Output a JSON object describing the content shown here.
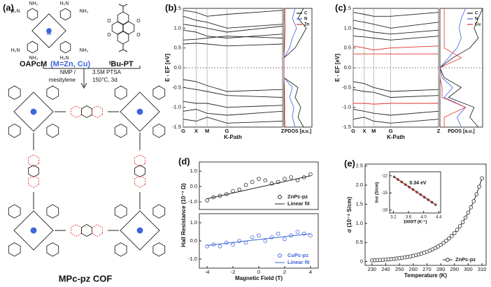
{
  "scheme": {
    "panel": "(a)",
    "monomer_1": "OAPcM",
    "monomer_1_metals": "(M=Zn, Cu)",
    "metal_atom": "M",
    "monomer_2": "ᵗBu-PT",
    "amines": [
      "H₂N",
      "NH₂",
      "H₂N",
      "NH₂",
      "H₂N",
      "NH₂",
      "H₂N",
      "NH₂"
    ],
    "oxygens": [
      "O",
      "O",
      "O",
      "O"
    ],
    "conditions_left": [
      "NMP /",
      "mesitylene"
    ],
    "conditions_right": [
      "3.5M PTSA",
      "150°C, 3d"
    ],
    "product": "MPc-pz COF"
  },
  "chart_data": [
    {
      "type": "band",
      "panel": "(b)",
      "ylabel": "E - EF [eV]",
      "xlabel": "K-Path",
      "xlim": [
        0,
        1
      ],
      "ylim": [
        -1.5,
        1.5
      ],
      "xticks": [
        {
          "value": 0,
          "label": "G"
        },
        {
          "value": 0.13,
          "label": "X"
        },
        {
          "value": 0.24,
          "label": "M"
        },
        {
          "value": 0.44,
          "label": "G"
        },
        {
          "value": 1,
          "label": "Z"
        }
      ],
      "yticks": [
        -1.5,
        {
          "value": -1,
          "label": "-1.0"
        },
        -0.5,
        {
          "value": 0,
          "label": "0.0"
        },
        0.5,
        {
          "value": 1,
          "label": "1.0"
        },
        1.5
      ],
      "fermi_level": 0,
      "x": [
        0,
        0.13,
        0.24,
        0.44,
        1
      ],
      "band_sets": [
        {
          "color": "#222222",
          "bands": [
            [
              1.45,
              1.4,
              1.3,
              1.35,
              1.45
            ],
            [
              1.3,
              1.2,
              1.15,
              1.0,
              1.1
            ],
            [
              1.1,
              1.05,
              1.0,
              0.9,
              1.05
            ],
            [
              0.95,
              0.9,
              0.8,
              0.75,
              0.85
            ],
            [
              0.7,
              0.72,
              0.75,
              0.8,
              0.75
            ],
            [
              0.6,
              0.62,
              0.6,
              0.55,
              0.6
            ],
            [
              -0.3,
              -0.35,
              -0.45,
              -0.6,
              -0.55
            ],
            [
              -0.5,
              -0.55,
              -0.6,
              -0.7,
              -0.75
            ],
            [
              -0.85,
              -0.9,
              -0.9,
              -1.0,
              -0.95
            ],
            [
              -1.1,
              -1.05,
              -1.15,
              -1.2,
              -1.1
            ],
            [
              -1.3,
              -1.35,
              -1.25,
              -1.4,
              -1.35
            ]
          ]
        }
      ],
      "pdos": {
        "title": "PDOS [a.u.]",
        "xlim": [
          0,
          1
        ],
        "energies": [
          -1.5,
          -1.25,
          -1,
          -0.75,
          -0.5,
          -0.25,
          0,
          0.25,
          0.5,
          0.75,
          1,
          1.25,
          1.5
        ],
        "legend": "upper right",
        "series": [
          {
            "name": "C",
            "color": "#111111",
            "values": [
              0.7,
              0.5,
              0.6,
              0.4,
              0.5,
              0,
              0,
              0,
              0.4,
              0.6,
              0.8,
              0.5,
              0.7
            ]
          },
          {
            "name": "N",
            "color": "#3d63dd",
            "values": [
              0.4,
              0.3,
              0.35,
              0.2,
              0.3,
              0,
              0,
              0,
              0.2,
              0.3,
              0.45,
              0.3,
              0.4
            ]
          },
          {
            "name": "Zn",
            "color": "#e0312b",
            "values": [
              0.05,
              0.02,
              0.03,
              0.02,
              0.02,
              0,
              0,
              0,
              0.02,
              0.03,
              0.05,
              0.03,
              0.04
            ]
          }
        ]
      }
    },
    {
      "type": "band",
      "panel": "(c)",
      "ylabel": "E - EF [eV]",
      "xlabel": "K-Path",
      "xlim": [
        0,
        1
      ],
      "ylim": [
        -1.5,
        1.5
      ],
      "xticks": [
        {
          "value": 0,
          "label": "G"
        },
        {
          "value": 0.13,
          "label": "X"
        },
        {
          "value": 0.24,
          "label": "M"
        },
        {
          "value": 0.44,
          "label": "G"
        },
        {
          "value": 1,
          "label": "Z"
        }
      ],
      "yticks": [
        -1.5,
        {
          "value": -1,
          "label": "-1.0"
        },
        -0.5,
        {
          "value": 0,
          "label": "0.0"
        },
        0.5,
        {
          "value": 1,
          "label": "1.0"
        },
        1.5
      ],
      "fermi_level": 0,
      "x": [
        0,
        0.13,
        0.24,
        0.44,
        1
      ],
      "band_sets": [
        {
          "color": "#222222",
          "bands": [
            [
              1.4,
              1.35,
              1.3,
              1.3,
              1.4
            ],
            [
              1.2,
              1.15,
              1.1,
              1.0,
              1.15
            ],
            [
              1.0,
              0.95,
              0.9,
              0.85,
              0.95
            ],
            [
              0.8,
              0.78,
              0.75,
              0.7,
              0.8
            ],
            [
              -0.35,
              -0.4,
              -0.5,
              -0.6,
              -0.55
            ],
            [
              -0.55,
              -0.6,
              -0.62,
              -0.75,
              -0.7
            ],
            [
              -1.05,
              -1.1,
              -1.15,
              -1.2,
              -1.1
            ],
            [
              -1.3,
              -1.25,
              -1.35,
              -1.4,
              -1.3
            ]
          ]
        },
        {
          "color": "#e0312b",
          "bands": [
            [
              0.55,
              0.5,
              0.45,
              0.5,
              0.55
            ],
            [
              0.35,
              0.35,
              0.35,
              0.35,
              0.35
            ],
            [
              -0.9,
              -0.9,
              -0.92,
              -0.9,
              -0.9
            ]
          ]
        }
      ],
      "pdos": {
        "title": "PDOS [a.u.]",
        "xlim": [
          0,
          1
        ],
        "energies": [
          -1.5,
          -1.25,
          -1,
          -0.75,
          -0.5,
          -0.25,
          0,
          0.25,
          0.5,
          0.75,
          1,
          1.25,
          1.5
        ],
        "legend": "upper right",
        "series": [
          {
            "name": "C",
            "color": "#111111",
            "values": [
              0.9,
              0.7,
              0.8,
              0.2,
              0.5,
              0.1,
              0,
              0.3,
              0.7,
              0.9,
              0.8,
              0.9,
              1.0
            ]
          },
          {
            "name": "N",
            "color": "#3d63dd",
            "values": [
              0.5,
              0.4,
              0.6,
              0.1,
              0.3,
              0.05,
              0,
              0.2,
              0.4,
              0.5,
              0.45,
              0.5,
              0.6
            ]
          },
          {
            "name": "Cu",
            "color": "#e0312b",
            "values": [
              0.1,
              0.1,
              0.6,
              0.05,
              0.05,
              0,
              0,
              0.5,
              0.1,
              0.1,
              0.1,
              0.1,
              0.1
            ]
          }
        ]
      }
    },
    {
      "type": "scatter",
      "panel": "(d)",
      "ylabel": "Hall Resistance (10⁻³ Ω)",
      "xlim": [
        -4.6,
        4.6
      ],
      "ylim": [
        -1.5,
        1.6
      ],
      "yticks": [
        {
          "value": -1,
          "label": "-1.0"
        },
        {
          "value": 0,
          "label": "0.0"
        },
        {
          "value": 1,
          "label": "1.0"
        }
      ],
      "legend": "lower right",
      "series": [
        {
          "name": "ZnPc-pz",
          "mode": "markers",
          "color": "#222222",
          "x": [
            -4,
            -3.5,
            -3,
            -2.5,
            -2,
            -1.5,
            -1,
            -0.5,
            0,
            0.5,
            1,
            1.5,
            2,
            2.5,
            3,
            3.5,
            4
          ],
          "values": [
            -0.9,
            -0.7,
            -0.6,
            -0.5,
            -0.3,
            -0.2,
            0.1,
            0.3,
            0.5,
            0.4,
            0.2,
            0.3,
            0.5,
            0.6,
            0.4,
            0.6,
            0.8
          ]
        },
        {
          "name": "Linear fit",
          "mode": "line",
          "color": "#222222",
          "x": [
            -4,
            4
          ],
          "values": [
            -0.8,
            0.7
          ]
        }
      ]
    },
    {
      "type": "scatter",
      "xlabel": "Magnetic Field (T)",
      "xlim": [
        -4.6,
        4.6
      ],
      "ylim": [
        -1.5,
        1.5
      ],
      "xticks": [
        -4,
        -2,
        0,
        2,
        4
      ],
      "yticks": [
        {
          "value": -1,
          "label": "-1.0"
        },
        {
          "value": 0,
          "label": "0.0"
        },
        {
          "value": 1,
          "label": "1.0"
        }
      ],
      "legend": "lower right",
      "series": [
        {
          "name": "CuPc-pz",
          "mode": "markers",
          "color": "#3d63dd",
          "x": [
            -4,
            -3.5,
            -3,
            -2.5,
            -2,
            -1.5,
            -1,
            -0.5,
            0,
            0.5,
            1,
            1.5,
            2,
            2.5,
            3,
            3.5,
            4
          ],
          "values": [
            -0.3,
            -0.2,
            -0.3,
            -0.1,
            -0.2,
            0.0,
            -0.1,
            0.2,
            0.3,
            0.0,
            0.2,
            0.4,
            0.1,
            0.3,
            0.5,
            0.4,
            0.3
          ]
        },
        {
          "name": "Linear fit",
          "mode": "line",
          "color": "#3d63dd",
          "x": [
            -4,
            4
          ],
          "values": [
            -0.25,
            0.4
          ]
        }
      ]
    },
    {
      "type": "line",
      "panel": "(e)",
      "ylabel": "σ (10⁻⁴ S/cm)",
      "xlabel": "Temperature (K)",
      "xlim": [
        225,
        313
      ],
      "ylim": [
        -0.1,
        2.55
      ],
      "xticks": [
        230,
        240,
        250,
        260,
        270,
        280,
        290,
        300,
        310
      ],
      "yticks": [
        0,
        0.5,
        {
          "value": 1,
          "label": "1.0"
        },
        1.5,
        {
          "value": 2,
          "label": "2.0"
        },
        2.5
      ],
      "legend": "lower right",
      "series": [
        {
          "name": "ZnPc-pz",
          "mode": "markers+line",
          "color": "#222222",
          "x": [
            230,
            232,
            234,
            236,
            238,
            240,
            242,
            244,
            246,
            248,
            250,
            252,
            254,
            256,
            258,
            260,
            262,
            264,
            266,
            268,
            270,
            272,
            274,
            276,
            278,
            280,
            282,
            284,
            286,
            288,
            290,
            292,
            294,
            296,
            298,
            300,
            302,
            304,
            306,
            308,
            310
          ],
          "values": [
            0.03,
            0.033,
            0.037,
            0.041,
            0.046,
            0.051,
            0.057,
            0.063,
            0.071,
            0.079,
            0.088,
            0.098,
            0.109,
            0.121,
            0.135,
            0.15,
            0.167,
            0.186,
            0.207,
            0.23,
            0.256,
            0.285,
            0.317,
            0.353,
            0.393,
            0.437,
            0.487,
            0.542,
            0.603,
            0.671,
            0.747,
            0.831,
            0.925,
            1.03,
            1.15,
            1.28,
            1.42,
            1.58,
            1.76,
            1.96,
            2.18
          ]
        }
      ]
    },
    {
      "type": "line",
      "inset": true,
      "ylabel": "lnσ (S/cm)",
      "xlabel": "1000/T (K⁻¹)",
      "annotation": "0.34 eV",
      "xlim": [
        3.1,
        4.45
      ],
      "ylim": [
        -18.5,
        -11.3
      ],
      "xticks": [
        3.2,
        3.6,
        {
          "value": 4,
          "label": "4.0"
        },
        4.4
      ],
      "yticks": [
        -18,
        -15,
        -12
      ],
      "series": [
        {
          "mode": "markers+line",
          "color": "#e0312b",
          "marker_color": "#222222",
          "x": [
            3.22,
            3.32,
            3.42,
            3.52,
            3.62,
            3.72,
            3.82,
            3.92,
            4.02,
            4.12,
            4.22,
            4.32
          ],
          "values": [
            -12.2,
            -12.64,
            -13.08,
            -13.53,
            -13.97,
            -14.41,
            -14.85,
            -15.29,
            -15.74,
            -16.18,
            -16.62,
            -17.06
          ]
        }
      ]
    }
  ]
}
